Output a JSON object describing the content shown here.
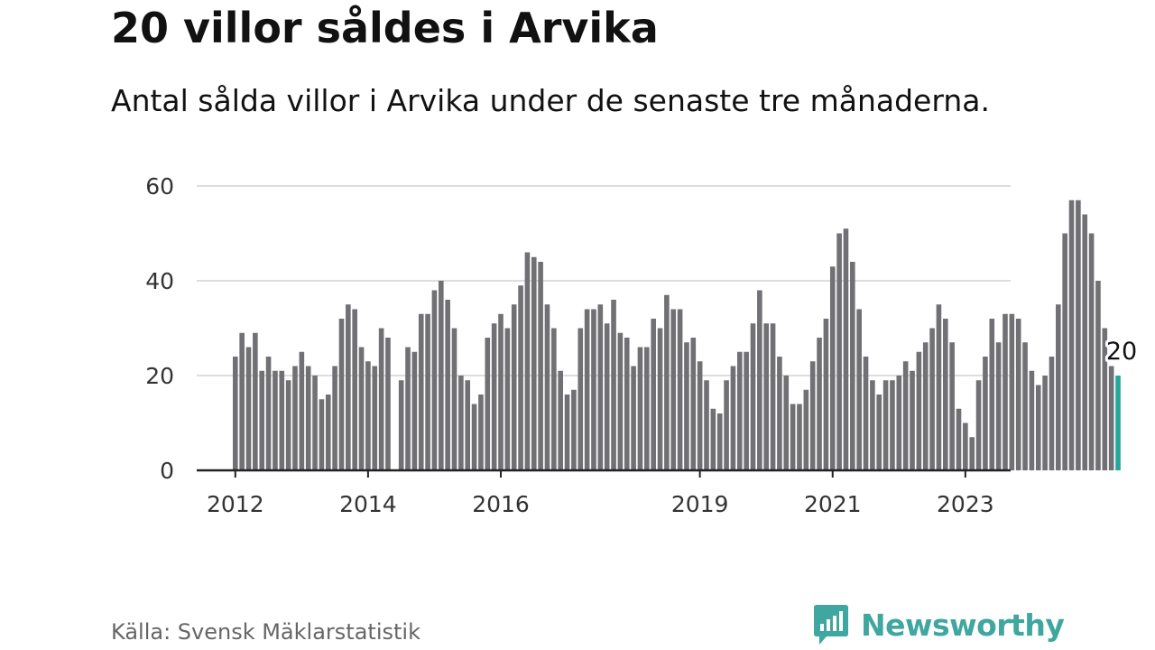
{
  "header": {
    "title": "20 villor såldes i Arvika",
    "subtitle": "Antal sålda villor i Arvika under de senaste tre månaderna."
  },
  "footer": {
    "source": "Källa: Svensk Mäklarstatistik",
    "brand": "Newsworthy",
    "brand_icon": "newsworthy-logo-icon"
  },
  "colors": {
    "bar": "#707075",
    "highlight": "#26a69a",
    "grid": "#dddddd",
    "axis": "#222222",
    "brand": "#3fa6a0"
  },
  "chart_data": {
    "type": "bar",
    "title": "20 villor såldes i Arvika",
    "subtitle": "Antal sålda villor i Arvika under de senaste tre månaderna.",
    "xlabel": "",
    "ylabel": "",
    "ylim": [
      0,
      60
    ],
    "yticks": [
      0,
      20,
      40,
      60
    ],
    "xticks": [
      {
        "label": "2012",
        "index": 0
      },
      {
        "label": "2014",
        "index": 20
      },
      {
        "label": "2016",
        "index": 40
      },
      {
        "label": "2019",
        "index": 70
      },
      {
        "label": "2021",
        "index": 90
      },
      {
        "label": "2023",
        "index": 110
      }
    ],
    "grid": true,
    "values": [
      24,
      29,
      26,
      29,
      21,
      24,
      21,
      21,
      19,
      22,
      25,
      22,
      20,
      15,
      16,
      22,
      32,
      35,
      34,
      26,
      23,
      22,
      30,
      28,
      0,
      19,
      26,
      25,
      33,
      33,
      38,
      40,
      36,
      30,
      20,
      19,
      14,
      16,
      28,
      31,
      33,
      30,
      35,
      39,
      46,
      45,
      44,
      35,
      30,
      21,
      16,
      17,
      30,
      34,
      34,
      35,
      31,
      36,
      29,
      28,
      22,
      26,
      26,
      32,
      30,
      37,
      34,
      34,
      27,
      28,
      23,
      19,
      13,
      12,
      19,
      22,
      25,
      25,
      31,
      38,
      31,
      31,
      24,
      20,
      14,
      14,
      17,
      23,
      28,
      32,
      43,
      50,
      51,
      44,
      34,
      24,
      19,
      16,
      19,
      19,
      20,
      23,
      21,
      25,
      27,
      30,
      35,
      32,
      27,
      13,
      10,
      7,
      19,
      24,
      32,
      27,
      33,
      33,
      32,
      27,
      21,
      18,
      20,
      24,
      35,
      50,
      57,
      57,
      54,
      50,
      40,
      30,
      22,
      20
    ],
    "highlight_index": 133,
    "annotation": {
      "label": "20",
      "index": 133
    }
  }
}
